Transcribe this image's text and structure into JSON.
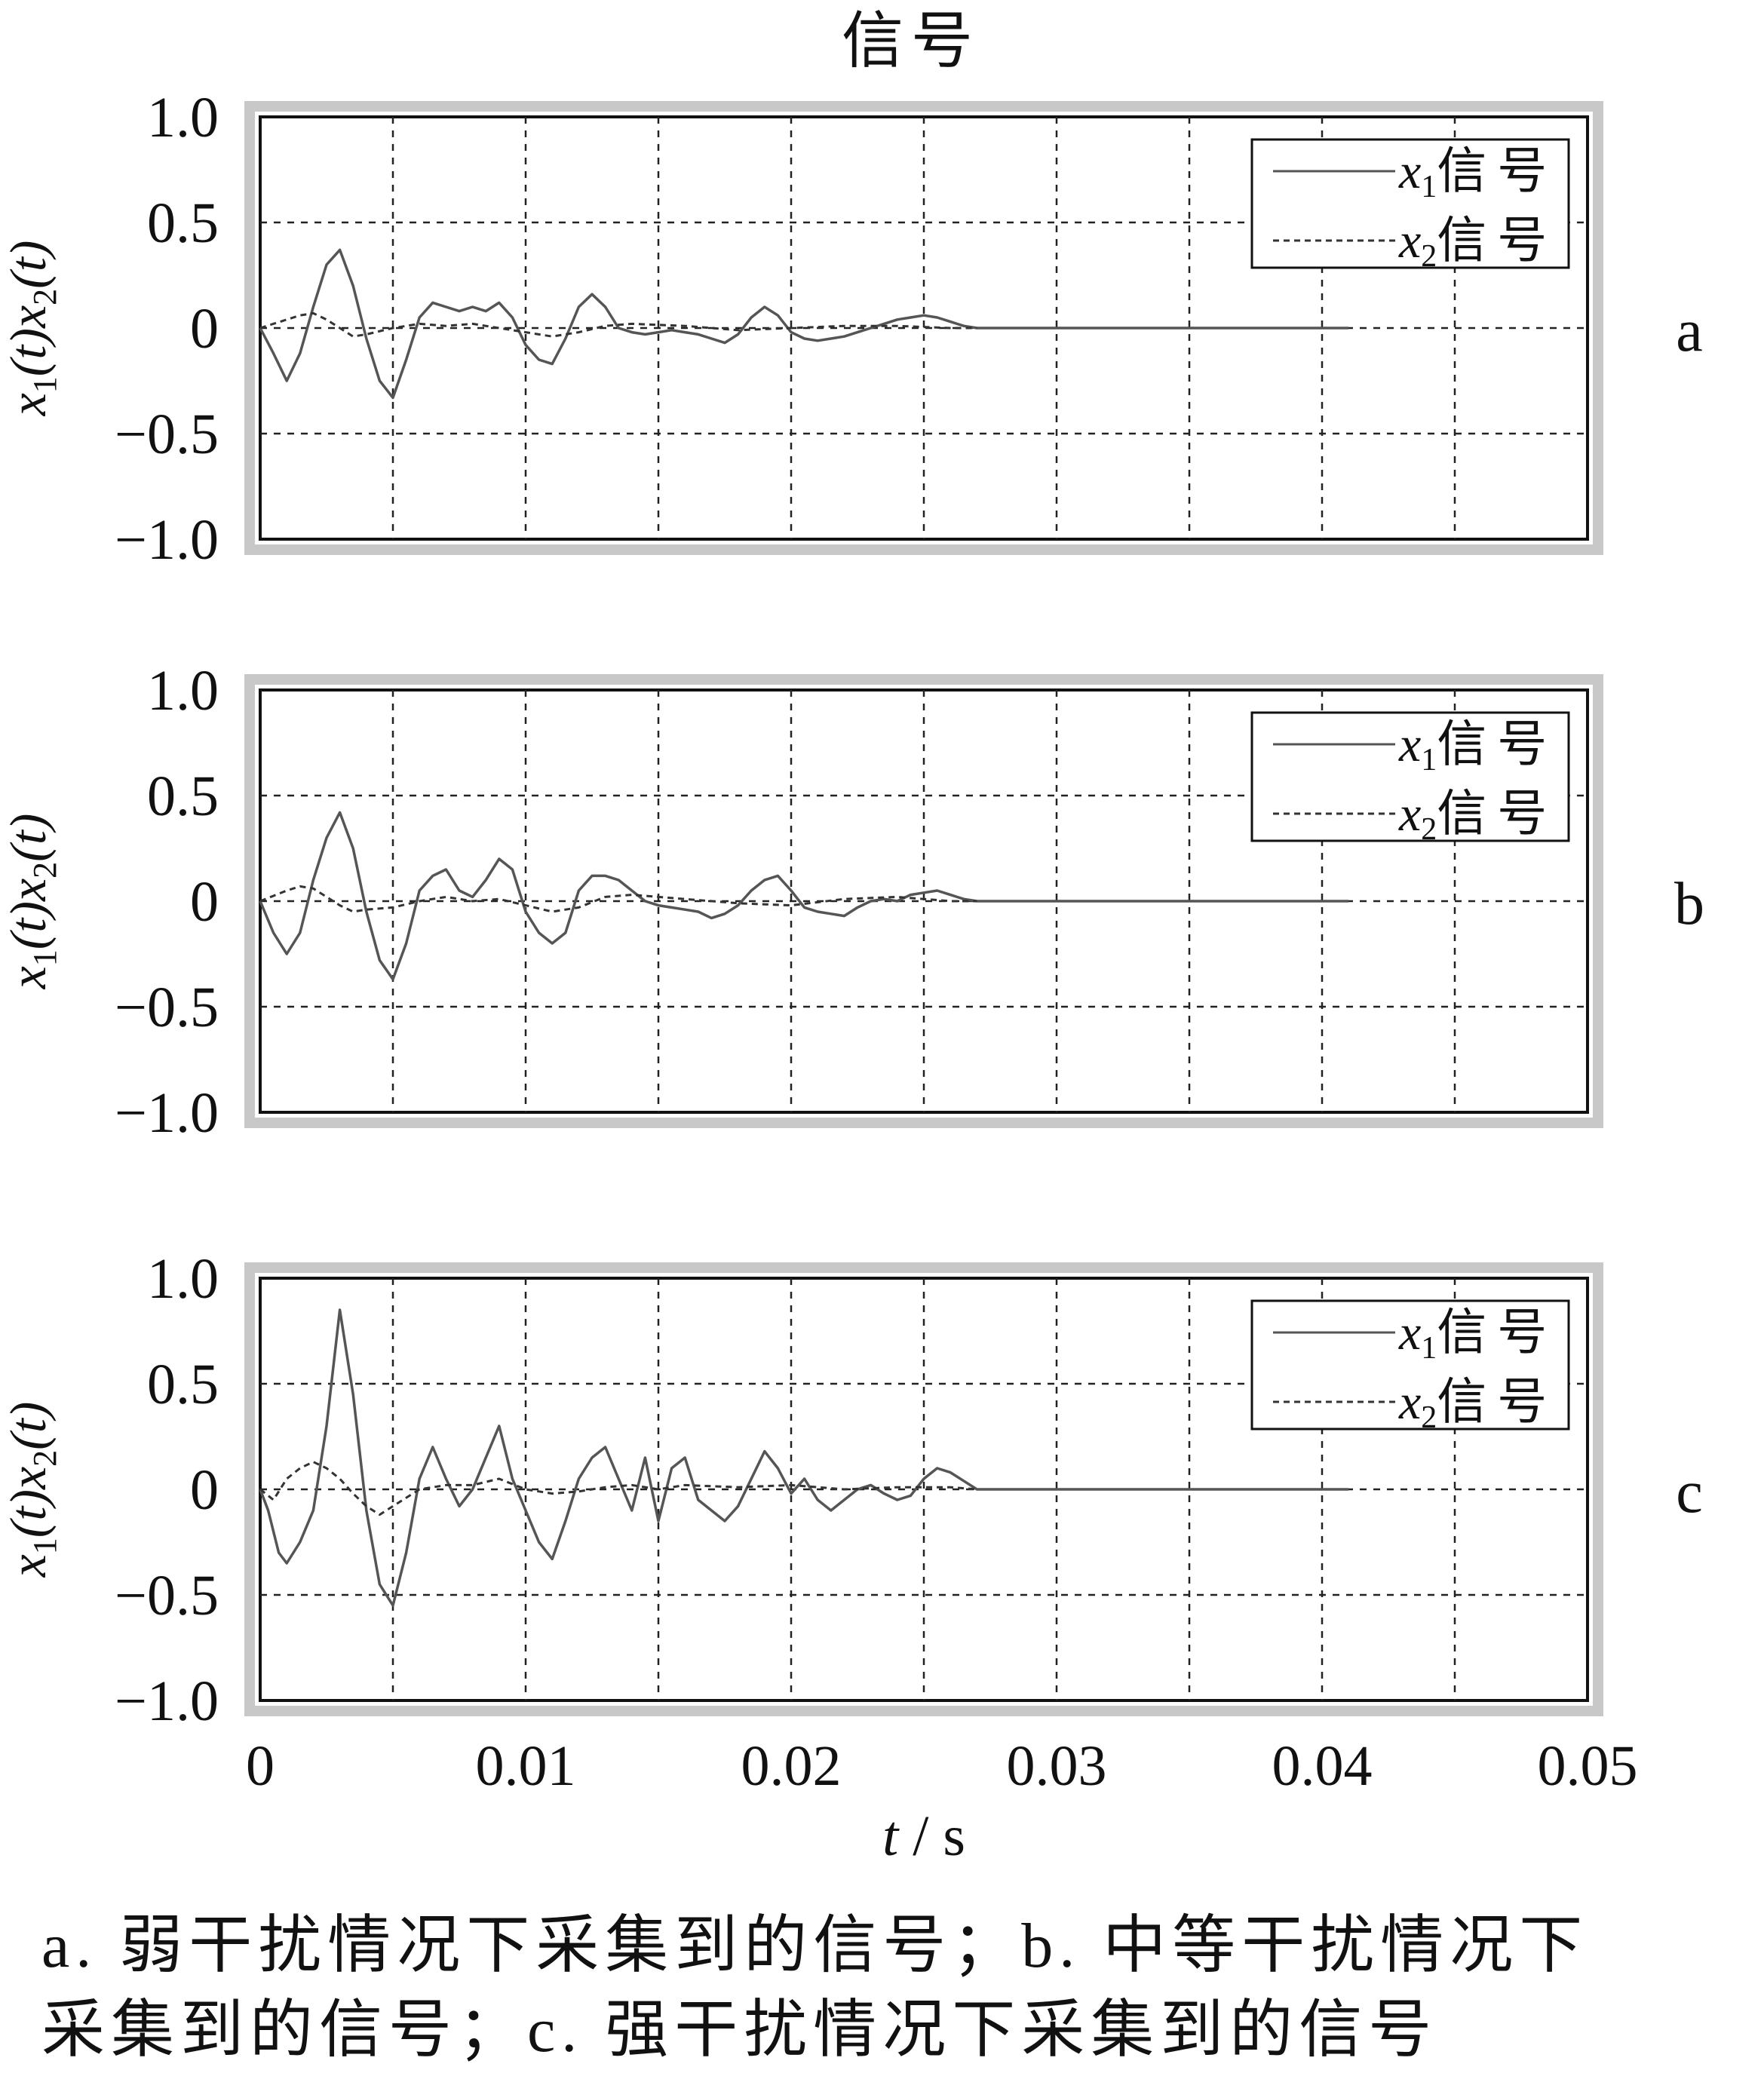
{
  "figure": {
    "title": "信号",
    "caption_lines": [
      "a. 弱干扰情况下采集到的信号；b. 中等干扰情况下",
      "采集到的信号；c. 强干扰情况下采集到的信号"
    ]
  },
  "colors": {
    "x1": "#555555",
    "x2": "#333333",
    "frame": "#c8c8c8",
    "grid": "#222222"
  },
  "chart_data": [
    {
      "type": "line",
      "panel_label": "a",
      "xlabel": "t / s",
      "ylabel": "x1(t)x2(t)",
      "xlim": [
        0,
        0.05
      ],
      "ylim": [
        -1.0,
        1.0
      ],
      "x_ticks": [
        "0",
        "0.01",
        "0.02",
        "0.03",
        "0.04",
        "0.05"
      ],
      "y_ticks": [
        "1.0",
        "0.5",
        "0",
        "−0.5",
        "−1.0"
      ],
      "grid": true,
      "legend": "top-right",
      "series": [
        {
          "name": "x1信号",
          "style": "solid",
          "x": [
            0,
            0.0005,
            0.001,
            0.0015,
            0.002,
            0.0025,
            0.003,
            0.0035,
            0.004,
            0.0045,
            0.005,
            0.0055,
            0.006,
            0.0065,
            0.007,
            0.0075,
            0.008,
            0.0085,
            0.009,
            0.0095,
            0.01,
            0.0105,
            0.011,
            0.0115,
            0.012,
            0.0125,
            0.013,
            0.0135,
            0.014,
            0.0145,
            0.015,
            0.0155,
            0.016,
            0.0165,
            0.017,
            0.0175,
            0.018,
            0.0185,
            0.019,
            0.0195,
            0.02,
            0.0205,
            0.021,
            0.0215,
            0.022,
            0.0225,
            0.023,
            0.0235,
            0.024,
            0.0245,
            0.025,
            0.0255,
            0.026,
            0.0265,
            0.027,
            0.03,
            0.035,
            0.04,
            0.041
          ],
          "y": [
            0,
            -0.12,
            -0.25,
            -0.12,
            0.1,
            0.3,
            0.37,
            0.2,
            -0.05,
            -0.25,
            -0.33,
            -0.15,
            0.05,
            0.12,
            0.1,
            0.08,
            0.1,
            0.08,
            0.12,
            0.05,
            -0.08,
            -0.15,
            -0.17,
            -0.05,
            0.1,
            0.16,
            0.1,
            0,
            -0.02,
            -0.03,
            -0.02,
            -0.01,
            -0.02,
            -0.03,
            -0.05,
            -0.07,
            -0.03,
            0.05,
            0.1,
            0.06,
            -0.02,
            -0.05,
            -0.06,
            -0.05,
            -0.04,
            -0.02,
            0,
            0.02,
            0.04,
            0.05,
            0.06,
            0.05,
            0.03,
            0.01,
            0,
            0,
            0,
            0,
            0
          ]
        },
        {
          "name": "x2信号",
          "style": "dashed",
          "x": [
            0,
            0.001,
            0.0015,
            0.002,
            0.0025,
            0.003,
            0.0035,
            0.004,
            0.005,
            0.006,
            0.007,
            0.008,
            0.009,
            0.01,
            0.011,
            0.012,
            0.013,
            0.014,
            0.016,
            0.018,
            0.02,
            0.022,
            0.024,
            0.026,
            0.027
          ],
          "y": [
            0,
            0.04,
            0.06,
            0.07,
            0.04,
            0,
            -0.04,
            -0.03,
            0,
            0.02,
            0.01,
            0.02,
            0,
            -0.02,
            -0.04,
            -0.02,
            0.01,
            0.02,
            0.01,
            -0.01,
            0,
            0.01,
            0.01,
            0,
            0
          ]
        }
      ]
    },
    {
      "type": "line",
      "panel_label": "b",
      "xlabel": "t / s",
      "ylabel": "x1(t)x2(t)",
      "xlim": [
        0,
        0.05
      ],
      "ylim": [
        -1.0,
        1.0
      ],
      "x_ticks": [
        "0",
        "0.01",
        "0.02",
        "0.03",
        "0.04",
        "0.05"
      ],
      "y_ticks": [
        "1.0",
        "0.5",
        "0",
        "−0.5",
        "−1.0"
      ],
      "grid": true,
      "legend": "top-right",
      "series": [
        {
          "name": "x1信号",
          "style": "solid",
          "x": [
            0,
            0.0005,
            0.001,
            0.0015,
            0.002,
            0.0025,
            0.003,
            0.0035,
            0.004,
            0.0045,
            0.005,
            0.0055,
            0.006,
            0.0065,
            0.007,
            0.0075,
            0.008,
            0.0085,
            0.009,
            0.0095,
            0.01,
            0.0105,
            0.011,
            0.0115,
            0.012,
            0.0125,
            0.013,
            0.0135,
            0.014,
            0.0145,
            0.015,
            0.0155,
            0.016,
            0.0165,
            0.017,
            0.0175,
            0.018,
            0.0185,
            0.019,
            0.0195,
            0.02,
            0.0205,
            0.021,
            0.0215,
            0.022,
            0.0225,
            0.023,
            0.0235,
            0.024,
            0.0245,
            0.025,
            0.0255,
            0.026,
            0.0265,
            0.027,
            0.03,
            0.035,
            0.04,
            0.041
          ],
          "y": [
            0,
            -0.15,
            -0.25,
            -0.15,
            0.1,
            0.3,
            0.42,
            0.25,
            -0.05,
            -0.28,
            -0.37,
            -0.2,
            0.05,
            0.12,
            0.15,
            0.05,
            0.02,
            0.1,
            0.2,
            0.15,
            -0.05,
            -0.15,
            -0.2,
            -0.15,
            0.05,
            0.12,
            0.12,
            0.1,
            0.05,
            0,
            -0.02,
            -0.03,
            -0.04,
            -0.05,
            -0.08,
            -0.06,
            -0.02,
            0.05,
            0.1,
            0.12,
            0.05,
            -0.03,
            -0.05,
            -0.06,
            -0.07,
            -0.03,
            0,
            0.01,
            0,
            0.03,
            0.04,
            0.05,
            0.03,
            0.01,
            0,
            0,
            0,
            0,
            0
          ]
        },
        {
          "name": "x2信号",
          "style": "dashed",
          "x": [
            0,
            0.001,
            0.0015,
            0.002,
            0.0025,
            0.003,
            0.0035,
            0.004,
            0.005,
            0.006,
            0.007,
            0.008,
            0.009,
            0.01,
            0.011,
            0.012,
            0.013,
            0.014,
            0.016,
            0.018,
            0.02,
            0.022,
            0.024,
            0.026,
            0.027
          ],
          "y": [
            0,
            0.05,
            0.07,
            0.06,
            0.02,
            -0.02,
            -0.05,
            -0.04,
            -0.03,
            0,
            0.02,
            0,
            0.01,
            -0.02,
            -0.05,
            -0.03,
            0.02,
            0.03,
            0.01,
            -0.01,
            -0.02,
            0.01,
            0.02,
            0,
            0
          ]
        }
      ]
    },
    {
      "type": "line",
      "panel_label": "c",
      "xlabel": "t / s",
      "ylabel": "x1(t)x2(t)",
      "xlim": [
        0,
        0.05
      ],
      "ylim": [
        -1.0,
        1.0
      ],
      "x_ticks": [
        "0",
        "0.01",
        "0.02",
        "0.03",
        "0.04",
        "0.05"
      ],
      "y_ticks": [
        "1.0",
        "0.5",
        "0",
        "−0.5",
        "−1.0"
      ],
      "grid": true,
      "legend": "top-right",
      "series": [
        {
          "name": "x1信号",
          "style": "solid",
          "x": [
            0,
            0.0003,
            0.0007,
            0.001,
            0.0015,
            0.002,
            0.0025,
            0.003,
            0.0035,
            0.004,
            0.0045,
            0.005,
            0.0055,
            0.006,
            0.0065,
            0.007,
            0.0075,
            0.008,
            0.0085,
            0.009,
            0.0095,
            0.01,
            0.0105,
            0.011,
            0.0115,
            0.012,
            0.0125,
            0.013,
            0.0135,
            0.014,
            0.0145,
            0.015,
            0.0155,
            0.016,
            0.0165,
            0.017,
            0.0175,
            0.018,
            0.0185,
            0.019,
            0.0195,
            0.02,
            0.0205,
            0.021,
            0.0215,
            0.022,
            0.0225,
            0.023,
            0.0235,
            0.024,
            0.0245,
            0.025,
            0.0255,
            0.026,
            0.0265,
            0.027,
            0.03,
            0.035,
            0.04,
            0.041
          ],
          "y": [
            0,
            -0.1,
            -0.3,
            -0.35,
            -0.25,
            -0.1,
            0.3,
            0.85,
            0.45,
            -0.1,
            -0.45,
            -0.55,
            -0.3,
            0.05,
            0.2,
            0.05,
            -0.08,
            0,
            0.15,
            0.3,
            0.05,
            -0.1,
            -0.25,
            -0.33,
            -0.15,
            0.05,
            0.15,
            0.2,
            0.05,
            -0.1,
            0.15,
            -0.15,
            0.1,
            0.15,
            -0.05,
            -0.1,
            -0.15,
            -0.08,
            0.05,
            0.18,
            0.1,
            -0.02,
            0.05,
            -0.05,
            -0.1,
            -0.05,
            0,
            0.02,
            -0.02,
            -0.05,
            -0.03,
            0.05,
            0.1,
            0.08,
            0.04,
            0,
            0,
            0,
            0,
            0
          ]
        },
        {
          "name": "x2信号",
          "style": "dashed",
          "x": [
            0,
            0.0005,
            0.001,
            0.0015,
            0.002,
            0.0025,
            0.003,
            0.0035,
            0.004,
            0.0045,
            0.005,
            0.006,
            0.007,
            0.008,
            0.009,
            0.01,
            0.011,
            0.012,
            0.013,
            0.014,
            0.015,
            0.016,
            0.018,
            0.02,
            0.022,
            0.024,
            0.026,
            0.027
          ],
          "y": [
            0,
            -0.05,
            0.05,
            0.1,
            0.13,
            0.1,
            0.05,
            -0.02,
            -0.08,
            -0.12,
            -0.08,
            0,
            0.02,
            0.02,
            0.05,
            0,
            -0.02,
            -0.01,
            0.01,
            0.02,
            0,
            0.02,
            0.01,
            0.02,
            0,
            0.01,
            0.01,
            0
          ]
        }
      ]
    }
  ]
}
